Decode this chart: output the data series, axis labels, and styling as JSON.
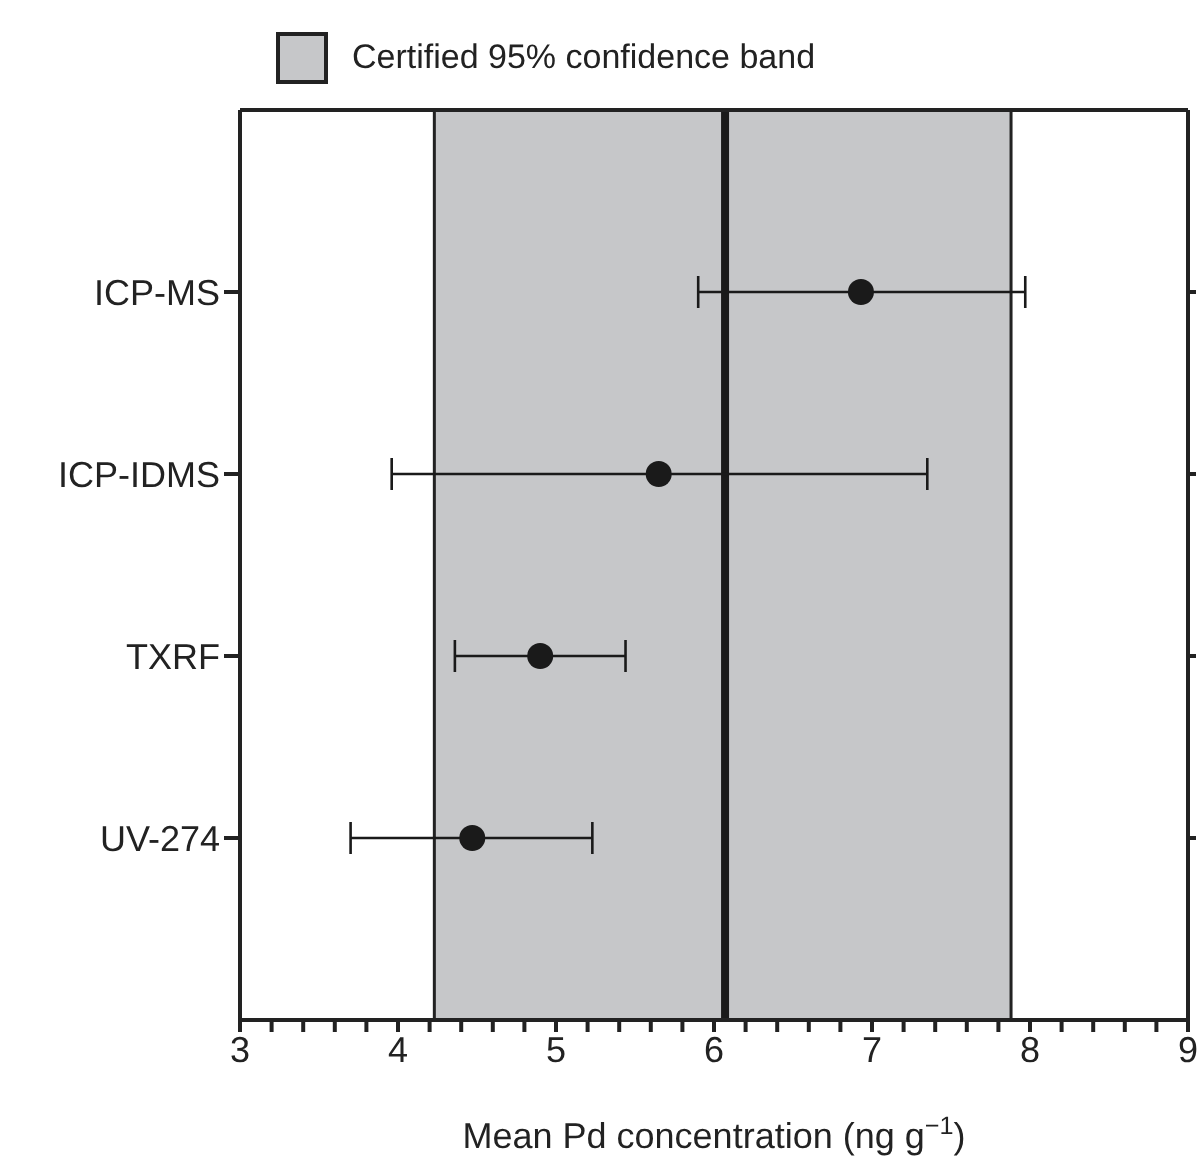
{
  "chart_data": {
    "type": "scatter",
    "orientation": "horizontal",
    "xlabel": "Mean Pd concentration (ng g$^{−1}$)",
    "categories": [
      "ICP-MS",
      "ICP-IDMS",
      "TXRF",
      "UV-274"
    ],
    "values": [
      6.93,
      5.65,
      4.9,
      4.47
    ],
    "color": "#1a1a1a",
    "marker": "circle",
    "errors": [
      [
        5.9,
        7.97
      ],
      [
        3.96,
        7.35
      ],
      [
        4.36,
        5.44
      ],
      [
        3.7,
        5.23
      ]
    ],
    "xlim": [
      3,
      9
    ],
    "xticks": [
      3,
      {
        "value": 3.2,
        "label": null
      },
      {
        "value": 3.4,
        "label": null
      },
      {
        "value": 3.6,
        "label": null
      },
      {
        "value": 3.8,
        "label": null
      },
      4,
      {
        "value": 4.2,
        "label": null
      },
      {
        "value": 4.4,
        "label": null
      },
      {
        "value": 4.6,
        "label": null
      },
      {
        "value": 4.8,
        "label": null
      },
      5,
      {
        "value": 5.2,
        "label": null
      },
      {
        "value": 5.4,
        "label": null
      },
      {
        "value": 5.6,
        "label": null
      },
      {
        "value": 5.8,
        "label": null
      },
      6,
      {
        "value": 6.2,
        "label": null
      },
      {
        "value": 6.4,
        "label": null
      },
      {
        "value": 6.6,
        "label": null
      },
      {
        "value": 6.8,
        "label": null
      },
      7,
      {
        "value": 7.2,
        "label": null
      },
      {
        "value": 7.4,
        "label": null
      },
      {
        "value": 7.6,
        "label": null
      },
      {
        "value": 7.8,
        "label": null
      },
      8,
      {
        "value": 8.2,
        "label": null
      },
      {
        "value": 8.4,
        "label": null
      },
      {
        "value": 8.6,
        "label": null
      },
      {
        "value": 8.8,
        "label": null
      },
      9
    ],
    "bands": [
      {
        "axis": "x",
        "from": 4.23,
        "to": 7.88,
        "label": "Certified 95% confidence band",
        "color": "#c6c7c9"
      }
    ],
    "ref_lines": [
      {
        "axis": "x",
        "value": 6.07,
        "color": "#1a1a1a"
      }
    ],
    "legend": "top left"
  }
}
